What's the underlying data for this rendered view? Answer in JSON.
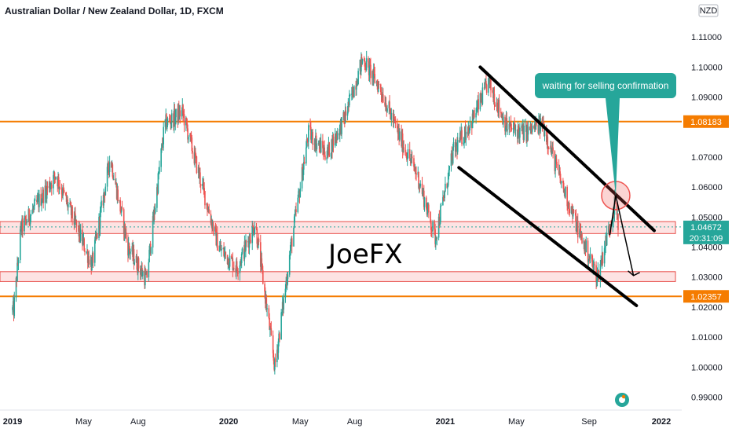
{
  "chart_data": {
    "type": "candlestick",
    "title": "Australian Dollar / New Zealand Dollar, 1D, FXCM",
    "currency": "NZD",
    "x_ticks": [
      "2019",
      "May",
      "Aug",
      "2020",
      "May",
      "Aug",
      "2021",
      "May",
      "Sep",
      "2022"
    ],
    "y_ticks": [
      "1.11000",
      "1.10000",
      "1.09000",
      "1.07000",
      "1.06000",
      "1.05000",
      "1.04000",
      "1.03000",
      "1.02000",
      "1.01000",
      "1.00000",
      "0.99000"
    ],
    "ylim": [
      0.9875,
      1.1145
    ],
    "resistance_level": "1.08183",
    "support_level": "1.02357",
    "current_price": "1.04672",
    "countdown": "20:31:09",
    "annotation": "waiting for selling confirmation",
    "watermark": "JoeFX",
    "demand_zones": [
      [
        1.0445,
        1.0485
      ],
      [
        1.0285,
        1.0318
      ]
    ],
    "key_prices": [
      {
        "date": "2019-01",
        "value": 1.046
      },
      {
        "date": "2019-01-03",
        "value": 1.019
      },
      {
        "date": "2019-03",
        "value": 1.064
      },
      {
        "date": "2019-05",
        "value": 1.034
      },
      {
        "date": "2019-06",
        "value": 1.07
      },
      {
        "date": "2019-07",
        "value": 1.04
      },
      {
        "date": "2019-08",
        "value": 1.029
      },
      {
        "date": "2019-09",
        "value": 1.081
      },
      {
        "date": "2019-10",
        "value": 1.085
      },
      {
        "date": "2019-11",
        "value": 1.062
      },
      {
        "date": "2019-12",
        "value": 1.04
      },
      {
        "date": "2020-01",
        "value": 1.033
      },
      {
        "date": "2020-02",
        "value": 1.048
      },
      {
        "date": "2020-03-19",
        "value": 1.0
      },
      {
        "date": "2020-04",
        "value": 1.04
      },
      {
        "date": "2020-05",
        "value": 1.078
      },
      {
        "date": "2020-06",
        "value": 1.071
      },
      {
        "date": "2020-07",
        "value": 1.083
      },
      {
        "date": "2020-08",
        "value": 1.103
      },
      {
        "date": "2020-09",
        "value": 1.092
      },
      {
        "date": "2020-10",
        "value": 1.077
      },
      {
        "date": "2020-11",
        "value": 1.064
      },
      {
        "date": "2020-12",
        "value": 1.043
      },
      {
        "date": "2021-01",
        "value": 1.072
      },
      {
        "date": "2021-02",
        "value": 1.082
      },
      {
        "date": "2021-03",
        "value": 1.095
      },
      {
        "date": "2021-04",
        "value": 1.08
      },
      {
        "date": "2021-05",
        "value": 1.078
      },
      {
        "date": "2021-06",
        "value": 1.081
      },
      {
        "date": "2021-07",
        "value": 1.062
      },
      {
        "date": "2021-08",
        "value": 1.045
      },
      {
        "date": "2021-09",
        "value": 1.03
      },
      {
        "date": "2021-10",
        "value": 1.055
      },
      {
        "date": "2021-10-20",
        "value": 1.0467
      }
    ],
    "grid": false
  },
  "colors": {
    "up": "#26a69a",
    "down": "#ef5350",
    "level_line": "#f57c00",
    "zone_fill": "#fde0e0",
    "zone_border": "#e53935",
    "callout": "#26a69a",
    "current_price_bg": "#26a69a",
    "axis_text": "#131722"
  }
}
